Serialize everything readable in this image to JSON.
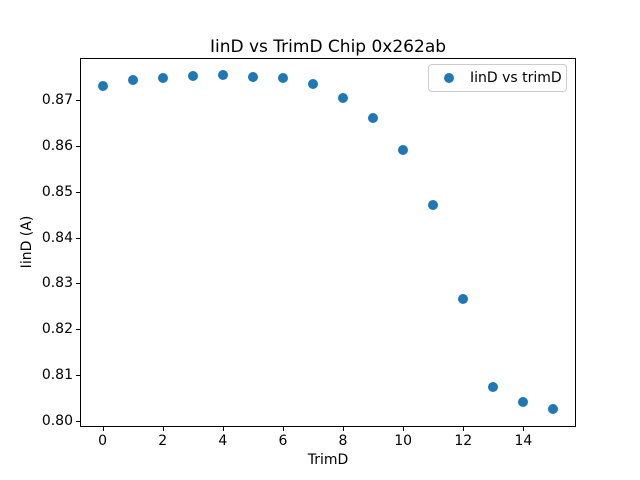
{
  "chart_data": {
    "type": "scatter",
    "title": "IinD vs TrimD Chip 0x262ab",
    "xlabel": "TrimD",
    "ylabel": "IinD (A)",
    "x": [
      0,
      1,
      2,
      3,
      4,
      5,
      6,
      7,
      8,
      9,
      10,
      11,
      12,
      13,
      14,
      15
    ],
    "series": [
      {
        "name": "IinD vs trimD",
        "values": [
          0.873,
          0.8743,
          0.8749,
          0.8753,
          0.8756,
          0.875,
          0.8748,
          0.8735,
          0.8705,
          0.8661,
          0.8592,
          0.8471,
          0.8265,
          0.8074,
          0.804,
          0.8025
        ]
      }
    ],
    "xlim": [
      -0.75,
      15.75
    ],
    "ylim": [
      0.7986,
      0.8793
    ],
    "xticks": [
      0,
      2,
      4,
      6,
      8,
      10,
      12,
      14
    ],
    "yticks": [
      0.8,
      0.81,
      0.82,
      0.83,
      0.84,
      0.85,
      0.86,
      0.87
    ],
    "ytick_labels": [
      "0.80",
      "0.81",
      "0.82",
      "0.83",
      "0.84",
      "0.85",
      "0.86",
      "0.87"
    ],
    "legend": {
      "label": "IinD vs trimD",
      "position": "upper right"
    },
    "marker_color": "#1f77b4",
    "grid": false
  }
}
